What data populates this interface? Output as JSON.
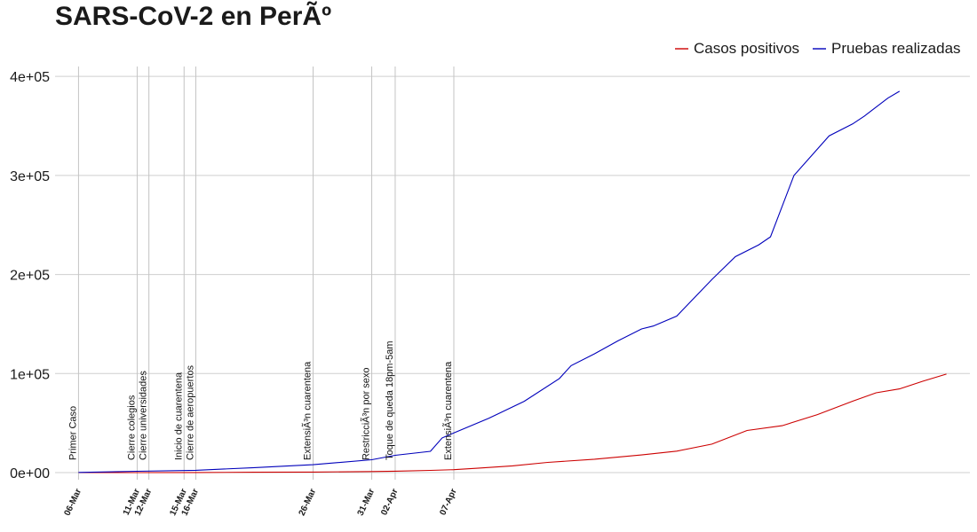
{
  "chart_data": {
    "type": "line",
    "title": "SARS-CoV-2 en PerÃº",
    "xlabel": "",
    "ylabel": "",
    "ylim": [
      0,
      410000
    ],
    "xlim": [
      "2020-03-04",
      "2020-05-21"
    ],
    "yticks": [
      0,
      100000,
      200000,
      300000,
      400000
    ],
    "ytick_labels": [
      "0e+00",
      "1e+05",
      "2e+05",
      "3e+05",
      "4e+05"
    ],
    "grid": true,
    "legend_position": "top-right",
    "series": [
      {
        "name": "Casos positivos",
        "color": "#cc0000",
        "x": [
          "2020-03-06",
          "2020-03-11",
          "2020-03-16",
          "2020-03-21",
          "2020-03-26",
          "2020-03-31",
          "2020-04-02",
          "2020-04-05",
          "2020-04-07",
          "2020-04-09",
          "2020-04-12",
          "2020-04-15",
          "2020-04-19",
          "2020-04-23",
          "2020-04-26",
          "2020-04-29",
          "2020-05-02",
          "2020-05-05",
          "2020-05-08",
          "2020-05-11",
          "2020-05-13",
          "2020-05-15",
          "2020-05-17",
          "2020-05-19"
        ],
        "values": [
          1,
          11,
          117,
          363,
          580,
          1065,
          1414,
          2281,
          2954,
          4342,
          6848,
          10303,
          13489,
          17837,
          21648,
          28699,
          42534,
          47372,
          58526,
          72059,
          80604,
          84495,
          92273,
          99483
        ]
      },
      {
        "name": "Pruebas realizadas",
        "color": "#0000bb",
        "x": [
          "2020-03-06",
          "2020-03-11",
          "2020-03-16",
          "2020-03-21",
          "2020-03-26",
          "2020-03-31",
          "2020-04-02",
          "2020-04-05",
          "2020-04-06",
          "2020-04-07",
          "2020-04-10",
          "2020-04-13",
          "2020-04-16",
          "2020-04-17",
          "2020-04-19",
          "2020-04-21",
          "2020-04-23",
          "2020-04-24",
          "2020-04-26",
          "2020-04-29",
          "2020-05-01",
          "2020-05-03",
          "2020-05-04",
          "2020-05-06",
          "2020-05-09",
          "2020-05-11",
          "2020-05-12",
          "2020-05-14",
          "2020-05-15"
        ],
        "values": [
          155,
          1300,
          2300,
          5000,
          8000,
          13000,
          17500,
          21500,
          35000,
          40000,
          55000,
          72000,
          95000,
          108000,
          120000,
          133000,
          145000,
          148000,
          158000,
          195000,
          218000,
          230000,
          238000,
          300000,
          340000,
          352000,
          360000,
          378000,
          385000
        ]
      }
    ],
    "x_ticks": [
      {
        "date": "2020-03-06",
        "label": "06-Mar"
      },
      {
        "date": "2020-03-11",
        "label": "11-Mar"
      },
      {
        "date": "2020-03-12",
        "label": "12-Mar"
      },
      {
        "date": "2020-03-15",
        "label": "15-Mar"
      },
      {
        "date": "2020-03-16",
        "label": "16-Mar"
      },
      {
        "date": "2020-03-26",
        "label": "26-Mar"
      },
      {
        "date": "2020-03-31",
        "label": "31-Mar"
      },
      {
        "date": "2020-04-02",
        "label": "02-Apr"
      },
      {
        "date": "2020-04-07",
        "label": "07-Apr"
      }
    ],
    "annotations": [
      {
        "date": "2020-03-06",
        "text": "Primer Caso"
      },
      {
        "date": "2020-03-11",
        "text": "Cierre colegios"
      },
      {
        "date": "2020-03-12",
        "text": "Cierre universidades"
      },
      {
        "date": "2020-03-15",
        "text": "Inicio de cuarentena"
      },
      {
        "date": "2020-03-16",
        "text": "Cierre de aeropuertos"
      },
      {
        "date": "2020-03-26",
        "text": "ExtensiÃ³n cuarentena"
      },
      {
        "date": "2020-03-31",
        "text": "RestricciÃ³n por sexo"
      },
      {
        "date": "2020-04-02",
        "text": "Toque de queda 18pm-5am"
      },
      {
        "date": "2020-04-07",
        "text": "ExtensiÃ³n cuarentena"
      }
    ]
  }
}
